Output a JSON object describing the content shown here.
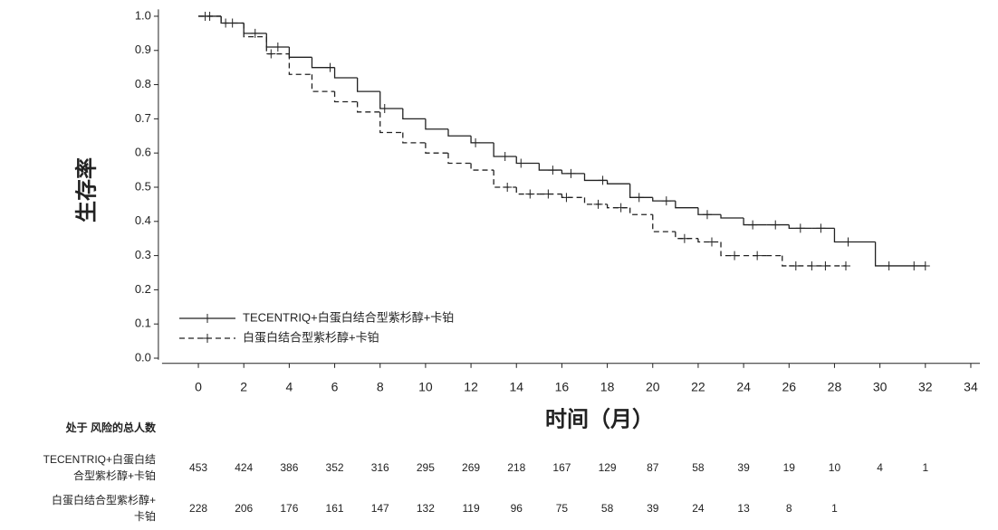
{
  "chart_data": {
    "type": "step",
    "x_label": "时间（月）",
    "y_label": "生存率",
    "xlim": [
      -1.6,
      34.4
    ],
    "ylim": [
      -0.01,
      1.02
    ],
    "xticks": [
      0,
      2,
      4,
      6,
      8,
      10,
      12,
      14,
      16,
      18,
      20,
      22,
      24,
      26,
      28,
      30,
      32,
      34
    ],
    "yticks": [
      {
        "value": 0,
        "label": "0.0"
      },
      0.1,
      0.2,
      0.3,
      0.4,
      0.5,
      0.6,
      0.7,
      0.8,
      0.9,
      {
        "value": 1,
        "label": "1.0"
      }
    ],
    "legend": "lower left",
    "series": [
      {
        "name": "TECENTRIQ+白蛋白结合型紫杉醇+卡铂",
        "color": "#222222",
        "line_style": "solid",
        "x": [
          0,
          1,
          2,
          3,
          4,
          5,
          6,
          7,
          8,
          9,
          10,
          11,
          12,
          13,
          14,
          15,
          16,
          17,
          18,
          19,
          20,
          21,
          22,
          23,
          24,
          25,
          26,
          27,
          28,
          29.8,
          32
        ],
        "values": [
          1.0,
          0.98,
          0.95,
          0.91,
          0.88,
          0.85,
          0.82,
          0.78,
          0.73,
          0.7,
          0.67,
          0.65,
          0.63,
          0.59,
          0.57,
          0.55,
          0.54,
          0.52,
          0.51,
          0.47,
          0.46,
          0.44,
          0.42,
          0.41,
          0.39,
          0.39,
          0.38,
          0.38,
          0.34,
          0.27,
          0.27
        ],
        "censor_x": [
          0.3,
          1.2,
          2.5,
          3.5,
          5.8,
          8.2,
          12.2,
          13.5,
          14.2,
          15.6,
          16.4,
          17.8,
          19.4,
          20.6,
          22.4,
          24.4,
          25.4,
          26.5,
          27.4,
          28.6,
          30.4,
          31.5,
          32
        ],
        "censor_values": [
          1.0,
          0.98,
          0.95,
          0.91,
          0.85,
          0.73,
          0.63,
          0.59,
          0.57,
          0.55,
          0.54,
          0.52,
          0.47,
          0.46,
          0.42,
          0.39,
          0.39,
          0.38,
          0.38,
          0.34,
          0.27,
          0.27,
          0.27
        ]
      },
      {
        "name": "白蛋白结合型紫杉醇+卡铂",
        "color": "#222222",
        "line_style": "dashed",
        "x": [
          0,
          1,
          2,
          3,
          4,
          5,
          6,
          7,
          8,
          9,
          10,
          11,
          12,
          13,
          14,
          15,
          16,
          17,
          18,
          19,
          20,
          21,
          22,
          23,
          24,
          25,
          25.7,
          26,
          28.5
        ],
        "values": [
          1.0,
          0.98,
          0.94,
          0.89,
          0.83,
          0.78,
          0.75,
          0.72,
          0.66,
          0.63,
          0.6,
          0.57,
          0.55,
          0.5,
          0.48,
          0.48,
          0.47,
          0.45,
          0.44,
          0.42,
          0.37,
          0.35,
          0.34,
          0.3,
          0.3,
          0.3,
          0.27,
          0.27,
          0.27
        ],
        "censor_x": [
          0.5,
          1.5,
          3.2,
          13.6,
          14.6,
          15.4,
          16.2,
          17.6,
          18.6,
          21.4,
          22.6,
          23.6,
          24.6,
          26.3,
          27,
          27.6,
          28.5
        ],
        "censor_values": [
          1.0,
          0.98,
          0.89,
          0.5,
          0.48,
          0.48,
          0.47,
          0.45,
          0.44,
          0.35,
          0.34,
          0.3,
          0.3,
          0.27,
          0.27,
          0.27,
          0.27
        ]
      }
    ],
    "risk_table": {
      "title": "处于 风险的总人数",
      "rows": [
        {
          "label_lines": [
            "TECENTRIQ+白蛋白结",
            "合型紫杉醇+卡铂"
          ],
          "counts": [
            453,
            424,
            386,
            352,
            316,
            295,
            269,
            218,
            167,
            129,
            87,
            58,
            39,
            19,
            10,
            4,
            1
          ]
        },
        {
          "label_lines": [
            "白蛋白结合型紫杉醇+",
            "卡铂"
          ],
          "counts": [
            228,
            206,
            176,
            161,
            147,
            132,
            119,
            96,
            75,
            58,
            39,
            24,
            13,
            8,
            1
          ]
        }
      ]
    }
  }
}
